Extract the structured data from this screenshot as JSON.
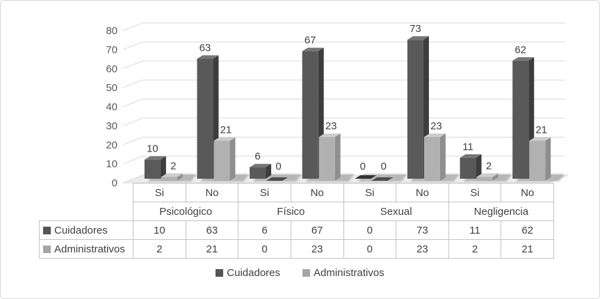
{
  "colors": {
    "grid": "#d9d9d9",
    "floor": "#ececec",
    "floor_edge": "#dcdcdc",
    "axis_text": "#595959",
    "label_text": "#3f3f3f",
    "shadow": "#000000",
    "series": [
      {
        "front": "#595959",
        "side": "#3d3d3d",
        "top": "#767676",
        "swatch": "#555555",
        "zero_flat": "#333333"
      },
      {
        "front": "#b1b1b1",
        "side": "#8f8f8f",
        "top": "#cdcdcd",
        "swatch": "#a6a6a6",
        "zero_flat": "#4d4d4d"
      }
    ]
  },
  "chart_data": {
    "type": "bar",
    "style": "3d-clustered-column",
    "title": "",
    "categories": [
      "Psicológico",
      "Físico",
      "Sexual",
      "Negligencia"
    ],
    "sub_categories": [
      "Si",
      "No"
    ],
    "series": [
      {
        "name": "Cuidadores",
        "values": [
          10,
          63,
          6,
          67,
          0,
          73,
          11,
          62
        ]
      },
      {
        "name": "Administrativos",
        "values": [
          2,
          21,
          0,
          23,
          0,
          23,
          2,
          21
        ]
      }
    ],
    "ylim": [
      0,
      80
    ],
    "ytick_step": 10,
    "yticks": [
      "0",
      "10",
      "20",
      "30",
      "40",
      "50",
      "60",
      "70",
      "80"
    ],
    "legend": [
      "Cuidadores",
      "Administrativos"
    ],
    "legend_position": "bottom",
    "grid": true,
    "data_table_shown": true
  }
}
